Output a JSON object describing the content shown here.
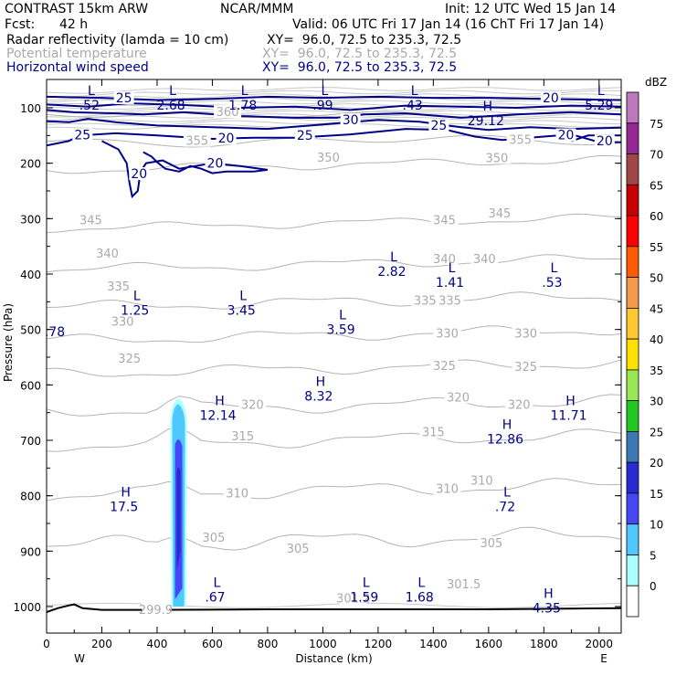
{
  "header": {
    "model": "CONTRAST 15km ARW",
    "org": "NCAR/MMM",
    "init": "Init: 12 UTC Wed 15 Jan 14",
    "fcst_label": "Fcst:",
    "fcst_value": "42 h",
    "valid": "Valid: 06 UTC Fri 17 Jan 14 (16 ChT Fri 17 Jan 14)",
    "fields": [
      {
        "name": "Radar reflectivity (lamda = 10 cm)",
        "xy": "XY=  96.0, 72.5 to 235.3, 72.5",
        "color": "#000000"
      },
      {
        "name": "Potential temperature",
        "xy": "XY=  96.0, 72.5 to 235.3, 72.5",
        "color": "#aaaaaa"
      },
      {
        "name": "Horizontal wind speed",
        "xy": "XY=  96.0, 72.5 to 235.3, 72.5",
        "color": "#000088"
      }
    ]
  },
  "chart_data": {
    "type": "cross-section",
    "xlabel": "Distance (km)",
    "ylabel": "Pressure (hPa)",
    "xlim": [
      0,
      2080
    ],
    "x_ticks": [
      0,
      200,
      400,
      600,
      800,
      1000,
      1200,
      1400,
      1600,
      1800,
      2000
    ],
    "ylim": [
      1040,
      60
    ],
    "y_ticks": [
      100,
      200,
      300,
      400,
      500,
      600,
      700,
      800,
      900,
      1000
    ],
    "x_end_labels": {
      "left": "W",
      "right": "E"
    },
    "colorbar": {
      "unit": "dBZ",
      "levels": [
        0,
        5,
        10,
        15,
        20,
        25,
        30,
        35,
        40,
        45,
        50,
        55,
        60,
        65,
        70,
        75
      ],
      "colors": [
        "#ffffff",
        "#aaffff",
        "#4fc8ff",
        "#4646f5",
        "#2a2ad2",
        "#3c78b4",
        "#20c820",
        "#9ae654",
        "#ffe100",
        "#ffc832",
        "#f59a4b",
        "#ff5a00",
        "#ff0000",
        "#c80000",
        "#a04646",
        "#962896",
        "#be78be"
      ]
    },
    "reflectivity_core": {
      "x_center": 478,
      "p_top": 625,
      "p_bottom": 1000
    },
    "theta_contours": [
      {
        "label": "350",
        "x": 1610,
        "p": 193
      },
      {
        "label": "345",
        "x": 1440,
        "p": 305
      },
      {
        "label": "340",
        "x": 220,
        "p": 385
      },
      {
        "label": "335",
        "x": 1380,
        "p": 452
      },
      {
        "label": "330",
        "x": 1450,
        "p": 510
      },
      {
        "label": "325",
        "x": 1440,
        "p": 568
      },
      {
        "label": "320",
        "x": 1490,
        "p": 625
      },
      {
        "label": "315",
        "x": 1400,
        "p": 688
      },
      {
        "label": "310",
        "x": 1450,
        "p": 781
      },
      {
        "label": "305",
        "x": 1610,
        "p": 888
      },
      {
        "label": "360",
        "x": 640,
        "p": 110
      },
      {
        "label": "355",
        "x": 570,
        "p": 157
      }
    ],
    "theta_labels": [
      {
        "text": "350",
        "x": 1630,
        "p": 193
      },
      {
        "text": "350",
        "x": 1020,
        "p": 192
      },
      {
        "text": "345",
        "x": 1440,
        "p": 305
      },
      {
        "text": "345",
        "x": 1640,
        "p": 293
      },
      {
        "text": "345",
        "x": 160,
        "p": 305
      },
      {
        "text": "340",
        "x": 1440,
        "p": 375
      },
      {
        "text": "340",
        "x": 1585,
        "p": 375
      },
      {
        "text": "340",
        "x": 220,
        "p": 365
      },
      {
        "text": "335",
        "x": 1370,
        "p": 450
      },
      {
        "text": "335",
        "x": 1460,
        "p": 450
      },
      {
        "text": "335",
        "x": 260,
        "p": 425
      },
      {
        "text": "330",
        "x": 1450,
        "p": 510
      },
      {
        "text": "330",
        "x": 1735,
        "p": 510
      },
      {
        "text": "330",
        "x": 275,
        "p": 488
      },
      {
        "text": "325",
        "x": 1440,
        "p": 568
      },
      {
        "text": "325",
        "x": 1735,
        "p": 570
      },
      {
        "text": "325",
        "x": 300,
        "p": 555
      },
      {
        "text": "320",
        "x": 1490,
        "p": 625
      },
      {
        "text": "320",
        "x": 1710,
        "p": 638
      },
      {
        "text": "320",
        "x": 745,
        "p": 638
      },
      {
        "text": "315",
        "x": 1400,
        "p": 688
      },
      {
        "text": "315",
        "x": 710,
        "p": 695
      },
      {
        "text": "310",
        "x": 1450,
        "p": 790
      },
      {
        "text": "310",
        "x": 1575,
        "p": 775
      },
      {
        "text": "310",
        "x": 690,
        "p": 798
      },
      {
        "text": "305",
        "x": 1610,
        "p": 888
      },
      {
        "text": "305",
        "x": 910,
        "p": 898
      },
      {
        "text": "305",
        "x": 605,
        "p": 878
      },
      {
        "text": "360",
        "x": 655,
        "p": 110
      },
      {
        "text": "355",
        "x": 545,
        "p": 162
      },
      {
        "text": "355",
        "x": 1715,
        "p": 160
      },
      {
        "text": "301.5",
        "x": 1510,
        "p": 962
      },
      {
        "text": "301.2",
        "x": 1110,
        "p": 988
      },
      {
        "text": "299.9",
        "x": 395,
        "p": 1008
      }
    ],
    "wind_contour_labels": [
      {
        "text": "25",
        "x": 280,
        "p": 85
      },
      {
        "text": "20",
        "x": 1825,
        "p": 85
      },
      {
        "text": "30",
        "x": 1100,
        "p": 125
      },
      {
        "text": "25",
        "x": 1420,
        "p": 135
      },
      {
        "text": "25",
        "x": 130,
        "p": 152
      },
      {
        "text": "20",
        "x": 650,
        "p": 158
      },
      {
        "text": "25",
        "x": 935,
        "p": 153
      },
      {
        "text": "20",
        "x": 1880,
        "p": 152
      },
      {
        "text": "20",
        "x": 2020,
        "p": 163
      },
      {
        "text": "20",
        "x": 335,
        "p": 222
      },
      {
        "text": "20",
        "x": 610,
        "p": 203
      }
    ],
    "extrema": [
      {
        "type": "L",
        "value": ".52",
        "x": 155,
        "p": 80
      },
      {
        "type": "L",
        "value": "2.68",
        "x": 450,
        "p": 80
      },
      {
        "type": "L",
        "value": "1.78",
        "x": 710,
        "p": 80
      },
      {
        "type": "L",
        "value": ".99",
        "x": 1000,
        "p": 80
      },
      {
        "type": "L",
        "value": ".43",
        "x": 1325,
        "p": 80
      },
      {
        "type": "L",
        "value": "5.29",
        "x": 2000,
        "p": 80
      },
      {
        "type": "H",
        "value": "29.12",
        "x": 1590,
        "p": 108
      },
      {
        "type": "L",
        "value": "2.82",
        "x": 1250,
        "p": 380
      },
      {
        "type": "L",
        "value": "1.41",
        "x": 1460,
        "p": 400
      },
      {
        "type": "L",
        "value": ".53",
        "x": 1830,
        "p": 400
      },
      {
        "type": "L",
        "value": "1.25",
        "x": 320,
        "p": 450
      },
      {
        "type": "L",
        "value": "3.45",
        "x": 705,
        "p": 450
      },
      {
        "type": "L",
        "value": "3.59",
        "x": 1065,
        "p": 485
      },
      {
        "type": "H",
        "value": "8.32",
        "x": 985,
        "p": 605
      },
      {
        "type": "H",
        "value": "12.14",
        "x": 620,
        "p": 640
      },
      {
        "type": "H",
        "value": "11.71",
        "x": 1890,
        "p": 640
      },
      {
        "type": "H",
        "value": "12.86",
        "x": 1660,
        "p": 683
      },
      {
        "type": "H",
        "value": "17.5",
        "x": 280,
        "p": 805
      },
      {
        "type": "L",
        "value": ".72",
        "x": 1660,
        "p": 805
      },
      {
        "type": "L",
        "value": ".67",
        "x": 610,
        "p": 968
      },
      {
        "type": "L",
        "value": "1.59",
        "x": 1150,
        "p": 968
      },
      {
        "type": "L",
        "value": "1.68",
        "x": 1350,
        "p": 968
      },
      {
        "type": "H",
        "value": "4.35",
        "x": 1810,
        "p": 988
      }
    ],
    "side_label": {
      "text": ".78",
      "x": 30,
      "p": 512
    }
  }
}
